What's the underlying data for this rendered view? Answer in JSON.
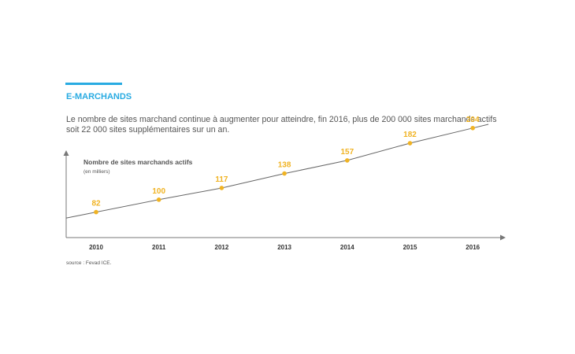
{
  "section": {
    "title": "E-MARCHANDS",
    "intro_line1": "Le nombre de sites marchand continue à augmenter pour atteindre, fin 2016, plus de 200 000 sites marchands actifs",
    "intro_line2": "soit 22 000 sites supplémentaires sur un an."
  },
  "source": "source : Fevad ICE.",
  "colors": {
    "accent": "#29abe2",
    "title": "#29abe2",
    "data": "#f0b323",
    "line": "#666666",
    "axis": "#777777"
  },
  "chart_data": {
    "type": "line",
    "title": "Nombre de sites marchands actifs",
    "subtitle": "(en milliers)",
    "x": [
      "2010",
      "2011",
      "2012",
      "2013",
      "2014",
      "2015",
      "2016"
    ],
    "series": [
      {
        "values": [
          82,
          100,
          117,
          138,
          157,
          182,
          204
        ]
      }
    ],
    "data_labels": [
      "82",
      "100",
      "117",
      "138",
      "157",
      "182",
      "204"
    ],
    "ylim": [
      45,
      230
    ],
    "grid": false,
    "legend": "none"
  }
}
